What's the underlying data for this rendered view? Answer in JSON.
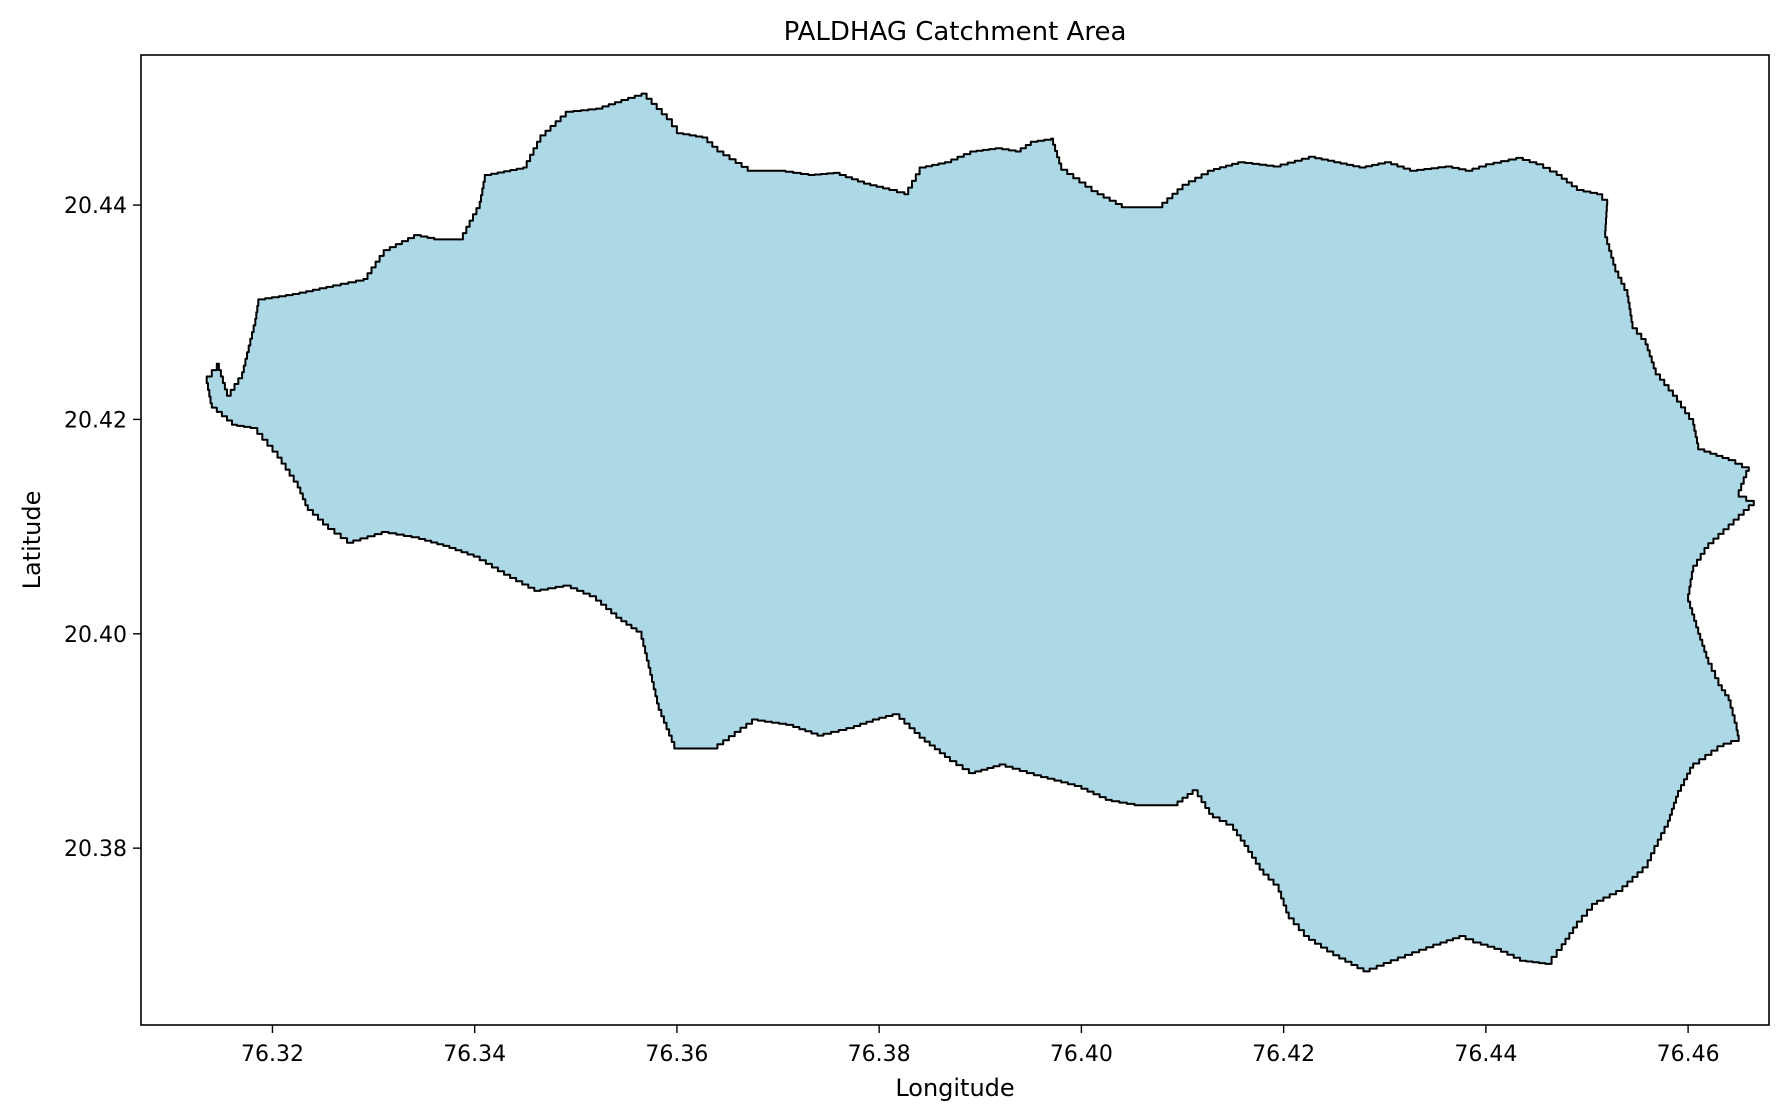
{
  "chart_data": {
    "type": "area",
    "title": "PALDHAG Catchment Area",
    "xlabel": "Longitude",
    "ylabel": "Latitude",
    "xlim": [
      76.307,
      76.468
    ],
    "ylim": [
      20.3635,
      20.454
    ],
    "xticks": [
      76.32,
      76.34,
      76.36,
      76.38,
      76.4,
      76.42,
      76.44,
      76.46
    ],
    "xtick_labels": [
      "76.32",
      "76.34",
      "76.36",
      "76.38",
      "76.40",
      "76.42",
      "76.44",
      "76.46"
    ],
    "yticks": [
      20.38,
      20.4,
      20.42,
      20.44
    ],
    "ytick_labels": [
      "20.38",
      "20.40",
      "20.42",
      "20.44"
    ],
    "grid": false,
    "fill_color": "#add8e6",
    "edge_color": "#000000",
    "series": [
      {
        "points": [
          [
            76.3155,
            20.4222
          ],
          [
            76.317,
            20.4244
          ],
          [
            76.3183,
            20.4294
          ],
          [
            76.3186,
            20.4312
          ],
          [
            76.322,
            20.4317
          ],
          [
            76.326,
            20.4325
          ],
          [
            76.329,
            20.4331
          ],
          [
            76.331,
            20.4358
          ],
          [
            76.334,
            20.4372
          ],
          [
            76.336,
            20.4368
          ],
          [
            76.3385,
            20.4368
          ],
          [
            76.3405,
            20.4403
          ],
          [
            76.341,
            20.4428
          ],
          [
            76.3448,
            20.4435
          ],
          [
            76.3465,
            20.4465
          ],
          [
            76.349,
            20.4487
          ],
          [
            76.352,
            20.449
          ],
          [
            76.3545,
            20.4498
          ],
          [
            76.3565,
            20.4504
          ],
          [
            76.359,
            20.448
          ],
          [
            76.36,
            20.4467
          ],
          [
            76.3625,
            20.4463
          ],
          [
            76.364,
            20.445
          ],
          [
            76.367,
            20.4432
          ],
          [
            76.37,
            20.4432
          ],
          [
            76.373,
            20.4428
          ],
          [
            76.3755,
            20.443
          ],
          [
            76.3785,
            20.442
          ],
          [
            76.381,
            20.4414
          ],
          [
            76.3825,
            20.441
          ],
          [
            76.384,
            20.4435
          ],
          [
            76.3865,
            20.444
          ],
          [
            76.389,
            20.445
          ],
          [
            76.3915,
            20.4453
          ],
          [
            76.3935,
            20.445
          ],
          [
            76.395,
            20.4459
          ],
          [
            76.397,
            20.4462
          ],
          [
            76.398,
            20.4433
          ],
          [
            76.401,
            20.4413
          ],
          [
            76.404,
            20.4398
          ],
          [
            76.4075,
            20.4398
          ],
          [
            76.41,
            20.4419
          ],
          [
            76.4125,
            20.4432
          ],
          [
            76.4155,
            20.444
          ],
          [
            76.419,
            20.4436
          ],
          [
            76.4225,
            20.4445
          ],
          [
            76.425,
            20.444
          ],
          [
            76.4275,
            20.4435
          ],
          [
            76.43,
            20.444
          ],
          [
            76.4325,
            20.4432
          ],
          [
            76.436,
            20.4436
          ],
          [
            76.438,
            20.4432
          ],
          [
            76.44,
            20.4438
          ],
          [
            76.443,
            20.4444
          ],
          [
            76.445,
            20.4438
          ],
          [
            76.447,
            20.4428
          ],
          [
            76.449,
            20.4414
          ],
          [
            76.451,
            20.441
          ],
          [
            76.452,
            20.44
          ],
          [
            76.4518,
            20.437
          ],
          [
            76.4528,
            20.4338
          ],
          [
            76.454,
            20.4315
          ],
          [
            76.4545,
            20.4285
          ],
          [
            76.4558,
            20.427
          ],
          [
            76.4568,
            20.4242
          ],
          [
            76.4585,
            20.4222
          ],
          [
            76.4605,
            20.4195
          ],
          [
            76.461,
            20.4172
          ],
          [
            76.464,
            20.4162
          ],
          [
            76.466,
            20.4152
          ],
          [
            76.465,
            20.4128
          ],
          [
            76.4665,
            20.412
          ],
          [
            76.4645,
            20.4102
          ],
          [
            76.462,
            20.408
          ],
          [
            76.4605,
            20.4058
          ],
          [
            76.46,
            20.403
          ],
          [
            76.461,
            20.4
          ],
          [
            76.462,
            20.3972
          ],
          [
            76.463,
            20.3952
          ],
          [
            76.464,
            20.3938
          ],
          [
            76.4648,
            20.391
          ],
          [
            76.465,
            20.39
          ],
          [
            76.4635,
            20.3895
          ],
          [
            76.4605,
            20.3875
          ],
          [
            76.459,
            20.3848
          ],
          [
            76.458,
            20.382
          ],
          [
            76.457,
            20.3802
          ],
          [
            76.456,
            20.3782
          ],
          [
            76.4535,
            20.376
          ],
          [
            76.451,
            20.3748
          ],
          [
            76.449,
            20.3726
          ],
          [
            76.4475,
            20.3705
          ],
          [
            76.4465,
            20.3692
          ],
          [
            76.444,
            20.3695
          ],
          [
            76.4415,
            20.3706
          ],
          [
            76.4395,
            20.3712
          ],
          [
            76.438,
            20.3718
          ],
          [
            76.4355,
            20.371
          ],
          [
            76.432,
            20.3698
          ],
          [
            76.4285,
            20.3685
          ],
          [
            76.4255,
            20.37
          ],
          [
            76.4225,
            20.3718
          ],
          [
            76.4205,
            20.374
          ],
          [
            76.4195,
            20.3766
          ],
          [
            76.418,
            20.378
          ],
          [
            76.4165,
            20.3802
          ],
          [
            76.415,
            20.3822
          ],
          [
            76.413,
            20.3832
          ],
          [
            76.4115,
            20.3854
          ],
          [
            76.4095,
            20.384
          ],
          [
            76.406,
            20.384
          ],
          [
            76.403,
            20.3845
          ],
          [
            76.4,
            20.3858
          ],
          [
            76.396,
            20.3868
          ],
          [
            76.3925,
            20.3878
          ],
          [
            76.3895,
            20.387
          ],
          [
            76.387,
            20.3885
          ],
          [
            76.3845,
            20.3903
          ],
          [
            76.382,
            20.3925
          ],
          [
            76.38,
            20.392
          ],
          [
            76.3775,
            20.3912
          ],
          [
            76.3745,
            20.3905
          ],
          [
            76.3715,
            20.3915
          ],
          [
            76.368,
            20.392
          ],
          [
            76.364,
            20.3893
          ],
          [
            76.36,
            20.3893
          ],
          [
            76.3582,
            20.3935
          ],
          [
            76.3572,
            20.3975
          ],
          [
            76.3565,
            20.4002
          ],
          [
            76.3545,
            20.4015
          ],
          [
            76.352,
            20.4035
          ],
          [
            76.3495,
            20.4045
          ],
          [
            76.3465,
            20.404
          ],
          [
            76.3435,
            20.4055
          ],
          [
            76.3405,
            20.4072
          ],
          [
            76.3375,
            20.4082
          ],
          [
            76.3345,
            20.409
          ],
          [
            76.3315,
            20.4095
          ],
          [
            76.328,
            20.4085
          ],
          [
            76.3255,
            20.4102
          ],
          [
            76.3235,
            20.412
          ],
          [
            76.3225,
            20.4142
          ],
          [
            76.3205,
            20.417
          ],
          [
            76.3185,
            20.4192
          ],
          [
            76.3165,
            20.4195
          ],
          [
            76.314,
            20.4215
          ],
          [
            76.3135,
            20.424
          ],
          [
            76.3145,
            20.4252
          ],
          [
            76.3155,
            20.4222
          ]
        ]
      }
    ]
  }
}
